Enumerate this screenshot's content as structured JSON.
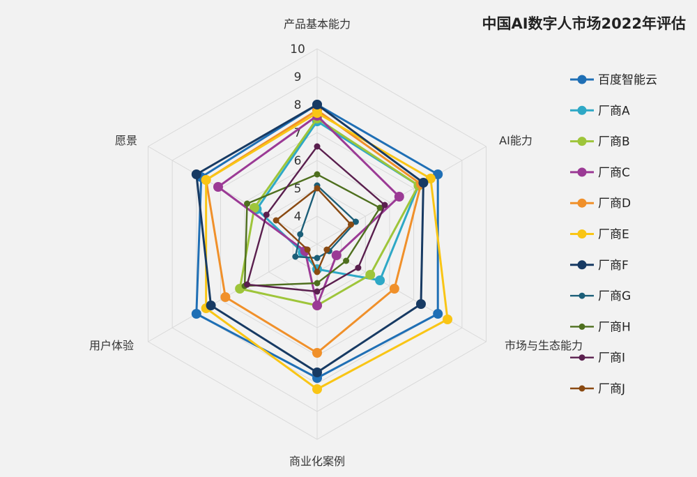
{
  "chart_data": {
    "type": "radar",
    "title": "中国AI数字人市场2022年评估",
    "axes": [
      "产品基本能力",
      "AI能力",
      "市场与生态能力",
      "商业化案例",
      "用户体验",
      "愿景"
    ],
    "r_ticks": [
      "4",
      "5",
      "6",
      "7",
      "8",
      "9",
      "10"
    ],
    "rlim": [
      3,
      10
    ],
    "grid": true,
    "legend_position": "right",
    "series": [
      {
        "name": "百度智能云",
        "color": "#1f6fb5",
        "values": [
          8.0,
          8.0,
          8.0,
          7.8,
          8.0,
          7.8
        ]
      },
      {
        "name": "厂商A",
        "color": "#2ea8c6",
        "values": [
          7.4,
          7.2,
          5.6,
          3.9,
          3.6,
          5.5
        ]
      },
      {
        "name": "厂商B",
        "color": "#9ec53a",
        "values": [
          7.5,
          7.2,
          5.2,
          5.2,
          6.2,
          5.6
        ]
      },
      {
        "name": "厂商C",
        "color": "#9b3a95",
        "values": [
          7.6,
          6.4,
          3.8,
          5.2,
          3.5,
          7.1
        ]
      },
      {
        "name": "厂商D",
        "color": "#f0902a",
        "values": [
          7.8,
          7.3,
          6.2,
          6.9,
          6.8,
          7.6
        ]
      },
      {
        "name": "厂商E",
        "color": "#f9c515",
        "values": [
          7.7,
          7.7,
          8.4,
          8.2,
          7.6,
          7.6
        ]
      },
      {
        "name": "厂商F",
        "color": "#173a63",
        "values": [
          8.0,
          7.4,
          7.3,
          7.6,
          7.4,
          8.0
        ]
      },
      {
        "name": "厂商G",
        "color": "#1b5e78",
        "values": [
          5.1,
          4.6,
          3.5,
          3.5,
          3.9,
          3.7
        ]
      },
      {
        "name": "厂商H",
        "color": "#4e6f1e",
        "values": [
          5.5,
          5.6,
          4.2,
          4.4,
          6.0,
          5.9
        ]
      },
      {
        "name": "厂商I",
        "color": "#5a1f4e",
        "values": [
          6.5,
          5.8,
          4.7,
          4.7,
          5.9,
          5.1
        ]
      },
      {
        "name": "厂商J",
        "color": "#8a4a12",
        "values": [
          5.0,
          4.4,
          3.4,
          4.0,
          3.4,
          4.7
        ]
      }
    ]
  }
}
